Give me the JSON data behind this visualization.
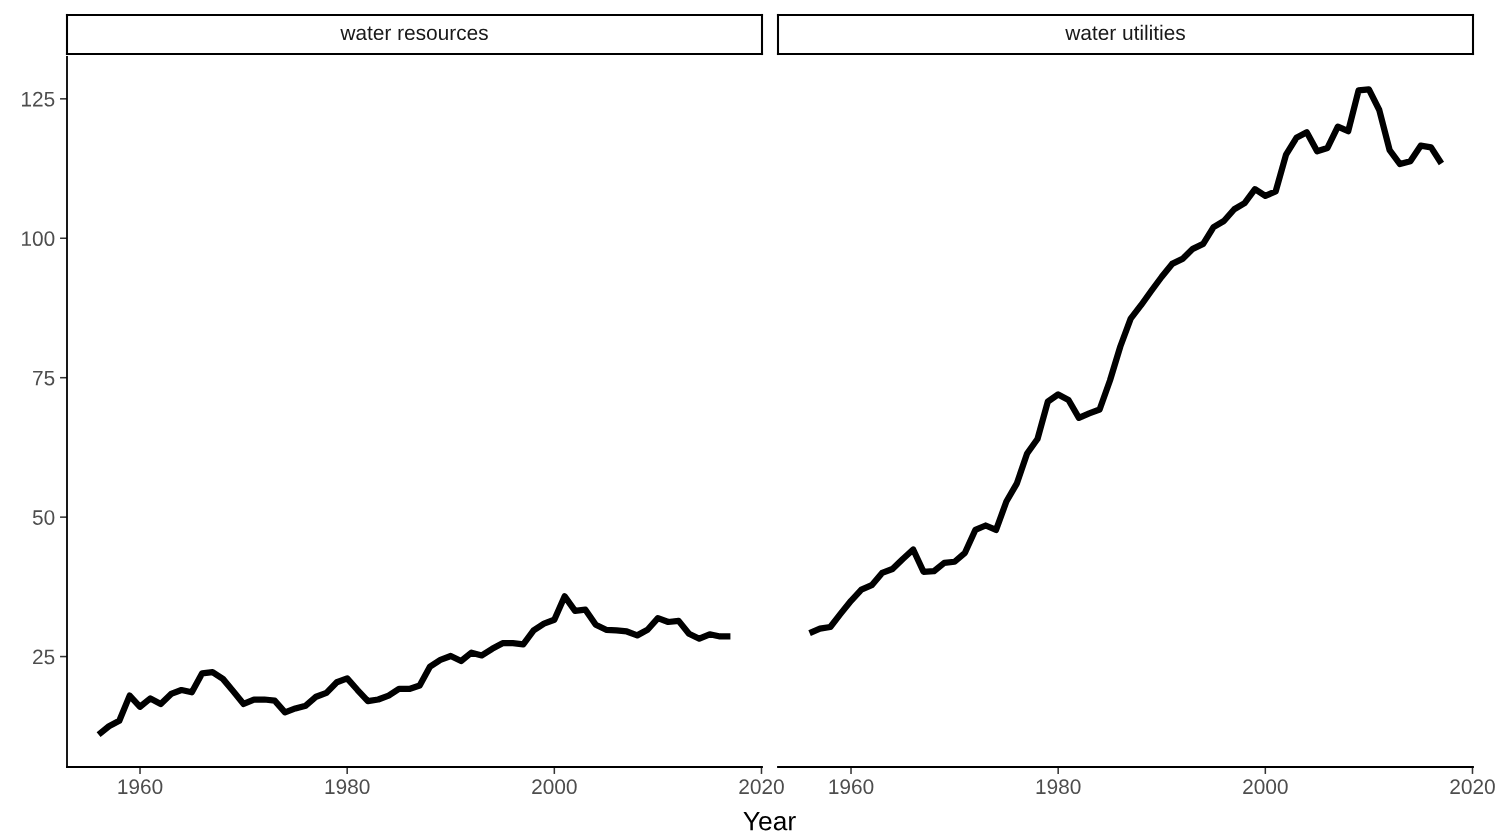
{
  "chart_data": [
    {
      "type": "line",
      "title": "water resources",
      "xlabel": "Year",
      "xlim": [
        1952.95,
        2020.05
      ],
      "xticks": [
        1960,
        1980,
        2000,
        2020
      ],
      "ylim": [
        5.2,
        132.5
      ],
      "yticks": [
        25,
        50,
        75,
        100,
        125
      ],
      "x": [
        1956,
        1957,
        1958,
        1959,
        1960,
        1961,
        1962,
        1963,
        1964,
        1965,
        1966,
        1967,
        1968,
        1969,
        1970,
        1971,
        1972,
        1973,
        1974,
        1975,
        1976,
        1977,
        1978,
        1979,
        1980,
        1981,
        1982,
        1983,
        1984,
        1985,
        1986,
        1987,
        1988,
        1989,
        1990,
        1991,
        1992,
        1993,
        1994,
        1995,
        1996,
        1997,
        1998,
        1999,
        2000,
        2001,
        2002,
        2003,
        2004,
        2005,
        2006,
        2007,
        2008,
        2009,
        2010,
        2011,
        2012,
        2013,
        2014,
        2015,
        2016,
        2017
      ],
      "series": [
        {
          "color": "#000000",
          "values": [
            11,
            12.5,
            13.5,
            18,
            16,
            17.5,
            16.5,
            18.3,
            19,
            18.6,
            22,
            22.2,
            21,
            18.8,
            16.5,
            17.3,
            17.3,
            17.1,
            15,
            15.7,
            16.2,
            17.8,
            18.5,
            20.4,
            21.1,
            19,
            17,
            17.3,
            18,
            19.2,
            19.2,
            19.8,
            23.2,
            24.4,
            25.1,
            24.2,
            25.7,
            25.2,
            26.4,
            27.4,
            27.4,
            27.2,
            29.7,
            30.9,
            31.6,
            35.8,
            33.2,
            33.4,
            30.7,
            29.8,
            29.7,
            29.5,
            28.8,
            29.8,
            31.9,
            31.2,
            31.4,
            29.1,
            28.2,
            29,
            28.6,
            28.6
          ]
        }
      ]
    },
    {
      "type": "line",
      "title": "water utilities",
      "xlim": [
        1952.95,
        2020.05
      ],
      "xticks": [
        1960,
        1980,
        2000,
        2020
      ],
      "ylim": [
        5.2,
        132.5
      ],
      "yticks": [
        25,
        50,
        75,
        100,
        125
      ],
      "tick_labels": "x",
      "x": [
        1956,
        1957,
        1958,
        1959,
        1960,
        1961,
        1962,
        1963,
        1964,
        1965,
        1966,
        1967,
        1968,
        1969,
        1970,
        1971,
        1972,
        1973,
        1974,
        1975,
        1976,
        1977,
        1978,
        1979,
        1980,
        1981,
        1982,
        1983,
        1984,
        1985,
        1986,
        1987,
        1988,
        1989,
        1990,
        1991,
        1992,
        1993,
        1994,
        1995,
        1996,
        1997,
        1998,
        1999,
        2000,
        2001,
        2002,
        2003,
        2004,
        2005,
        2006,
        2007,
        2008,
        2009,
        2010,
        2011,
        2012,
        2013,
        2014,
        2015,
        2016,
        2017
      ],
      "series": [
        {
          "color": "#000000",
          "values": [
            29.2,
            30,
            30.3,
            32.7,
            35,
            37,
            37.8,
            40,
            40.7,
            42.5,
            44.2,
            40.2,
            40.3,
            41.8,
            42,
            43.6,
            47.7,
            48.5,
            47.7,
            52.8,
            56,
            61.4,
            64,
            70.7,
            72,
            71,
            67.8,
            68.6,
            69.3,
            74.5,
            80.6,
            85.6,
            88,
            90.6,
            93.1,
            95.4,
            96.3,
            98.1,
            99,
            102,
            103.1,
            105.2,
            106.3,
            108.8,
            107.6,
            108.4,
            115,
            118,
            119,
            115.6,
            116.2,
            120,
            119.2,
            126.5,
            126.7,
            123,
            115.8,
            113.3,
            113.8,
            116.6,
            116.3,
            113.4
          ]
        }
      ]
    }
  ]
}
